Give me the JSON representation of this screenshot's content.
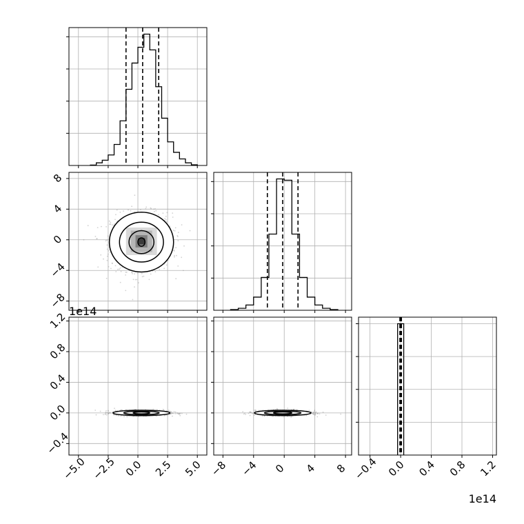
{
  "chart_data": {
    "type": "corner",
    "grid": true,
    "colors": {
      "line": "#000000",
      "grid": "#b0b0b0",
      "scatter": "#9a9a9a"
    },
    "histograms": [
      {
        "param": 1,
        "bin_edges": [
          -4.0,
          -3.5,
          -3.0,
          -2.5,
          -2.0,
          -1.5,
          -1.0,
          -0.5,
          0.0,
          0.5,
          1.0,
          1.5,
          2.0,
          2.5,
          3.0,
          3.5,
          4.0,
          4.5,
          5.0
        ],
        "counts": [
          0.3,
          2.0,
          4.0,
          8.0,
          16.0,
          34.0,
          58.0,
          78.0,
          90.0,
          100.0,
          88.0,
          60.0,
          36.0,
          18.0,
          10.0,
          5.0,
          2.0,
          0.5
        ],
        "quantiles": [
          -1.0,
          0.4,
          1.75
        ]
      },
      {
        "param": 2,
        "bin_edges": [
          -7.0,
          -6.0,
          -5.0,
          -4.0,
          -3.0,
          -2.0,
          -1.0,
          0.0,
          1.0,
          2.0,
          3.0,
          4.0,
          5.0,
          6.0,
          7.0
        ],
        "counts": [
          0.5,
          1.5,
          4.0,
          10.0,
          25.0,
          58.0,
          100.0,
          99.0,
          58.0,
          25.0,
          10.0,
          4.0,
          1.5,
          0.5
        ],
        "quantiles": [
          -2.2,
          -0.2,
          1.8
        ]
      },
      {
        "param": 3,
        "offset_label": "1e14",
        "bin_edges": [
          -0.04,
          0.0,
          0.04
        ],
        "counts": [
          100.0,
          100.0
        ],
        "quantiles": [
          -0.01,
          0.0,
          0.01
        ]
      }
    ],
    "scatter_panels": [
      {
        "x_param": 1,
        "y_param": 2,
        "center": [
          0.3,
          -0.3
        ],
        "contours": [
          {
            "rx": 2.7,
            "ry": 3.9
          },
          {
            "rx": 1.85,
            "ry": 2.6
          },
          {
            "rx": 1.05,
            "ry": 1.5
          },
          {
            "rx": 0.3,
            "ry": 0.55
          }
        ],
        "cells": [
          {
            "x": -1.0,
            "y": -2.0,
            "w": 2.6,
            "h": 3.6,
            "shade": "#d9d9d9"
          },
          {
            "x": -0.6,
            "y": -1.6,
            "w": 1.8,
            "h": 2.8,
            "shade": "#b5b5b5"
          },
          {
            "x": -0.2,
            "y": -1.0,
            "w": 1.0,
            "h": 1.6,
            "shade": "#7f7f7f"
          },
          {
            "x": 0.0,
            "y": -0.6,
            "w": 0.6,
            "h": 0.8,
            "shade": "#3a3a3a"
          }
        ]
      },
      {
        "x_param": 1,
        "y_param": 3,
        "center": [
          0.3,
          0.0
        ],
        "contours": [
          {
            "rx": 2.4,
            "ry": 0.035
          },
          {
            "rx": 1.5,
            "ry": 0.022
          },
          {
            "rx": 0.7,
            "ry": 0.012
          }
        ]
      },
      {
        "x_param": 2,
        "y_param": 3,
        "center": [
          -0.2,
          0.0
        ],
        "contours": [
          {
            "rx": 3.7,
            "ry": 0.035
          },
          {
            "rx": 2.4,
            "ry": 0.022
          },
          {
            "rx": 1.2,
            "ry": 0.012
          }
        ]
      }
    ],
    "axes": {
      "param1": {
        "range": [
          -5.8,
          5.8
        ],
        "ticks": [
          -5.0,
          -2.5,
          0.0,
          2.5,
          5.0
        ],
        "tick_labels": [
          "−5.0",
          "−2.5",
          "0.0",
          "2.5",
          "5.0"
        ]
      },
      "param2": {
        "range": [
          -9.2,
          8.8
        ],
        "ticks": [
          -8,
          -4,
          0,
          4,
          8
        ],
        "tick_labels": [
          "−8",
          "−4",
          "0",
          "4",
          "8"
        ]
      },
      "param3": {
        "range": [
          -0.55,
          1.25
        ],
        "ticks": [
          -0.4,
          0.0,
          0.4,
          0.8,
          1.2
        ],
        "tick_labels": [
          "−0.4",
          "0.0",
          "0.4",
          "0.8",
          "1.2"
        ],
        "offset_label": "1e14"
      }
    }
  }
}
